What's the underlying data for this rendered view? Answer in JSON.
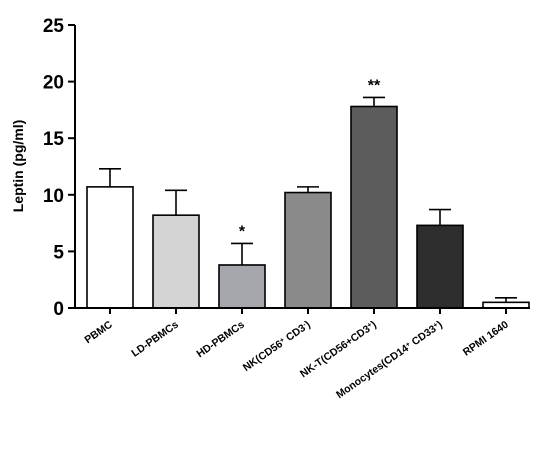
{
  "chart_data": {
    "type": "bar",
    "title": "",
    "ylabel": "Leptin (pg/ml)",
    "xlabel": "",
    "ylim": [
      0,
      25
    ],
    "yticks": [
      0,
      5,
      10,
      15,
      20,
      25
    ],
    "grid": false,
    "categories": [
      {
        "text": "PBMC",
        "sup": []
      },
      {
        "text": "LD-PBMCs",
        "sup": []
      },
      {
        "text": "HD-PBMCs",
        "sup": []
      },
      {
        "text": "NK(CD56+ CD3-)",
        "parts": [
          [
            "NK(CD56",
            ""
          ],
          [
            "+",
            "sup"
          ],
          [
            " CD3",
            ""
          ],
          [
            "-",
            "sup"
          ],
          [
            ")",
            ""
          ]
        ]
      },
      {
        "text": "NK-T(CD56+CD3+)",
        "parts": [
          [
            "NK-T(CD56+CD3",
            ""
          ],
          [
            "+",
            "sup"
          ],
          [
            ")",
            ""
          ]
        ]
      },
      {
        "text": "Monocytes(CD14+ CD33+)",
        "parts": [
          [
            "Monocytes(CD14",
            ""
          ],
          [
            "+",
            "sup"
          ],
          [
            " CD33",
            ""
          ],
          [
            "+",
            "sup"
          ],
          [
            ")",
            ""
          ]
        ]
      },
      {
        "text": "RPMI 1640",
        "sup": []
      }
    ],
    "values": [
      10.7,
      8.2,
      3.8,
      10.2,
      17.8,
      7.3,
      0.5
    ],
    "errors": [
      1.6,
      2.2,
      1.9,
      0.5,
      0.8,
      1.4,
      0.4
    ],
    "significance": [
      "",
      "",
      "*",
      "",
      "**",
      "",
      ""
    ],
    "colors": [
      "#ffffff",
      "#d4d4d4",
      "#a6a6ad",
      "#8a8a8a",
      "#5c5c5c",
      "#2e2e2e",
      "#ffffff"
    ]
  }
}
